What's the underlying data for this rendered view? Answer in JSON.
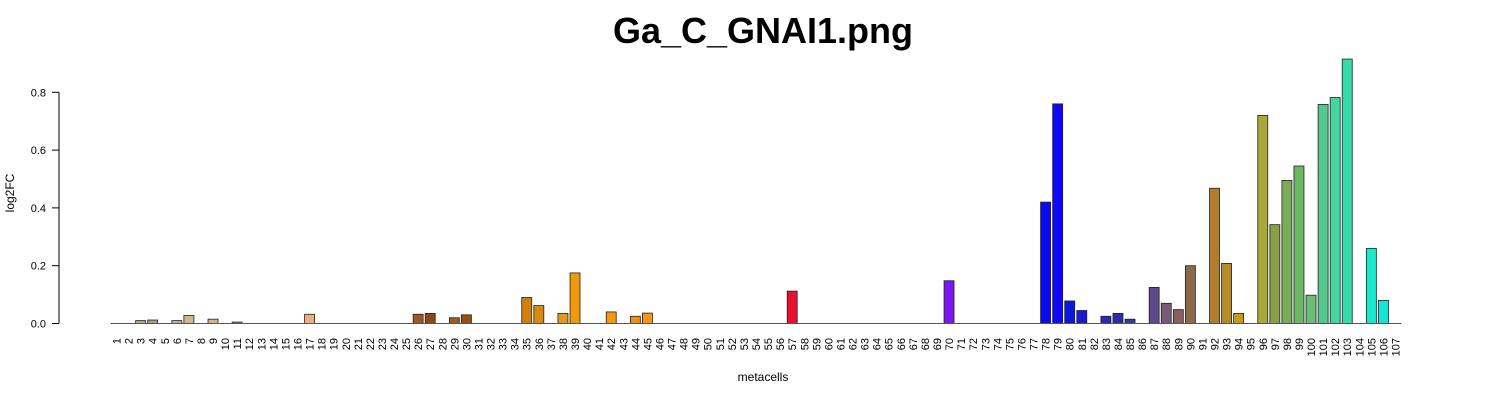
{
  "chart_data": {
    "type": "bar",
    "title": "Ga_C_GNAI1.png",
    "xlabel": "metacells",
    "ylabel": "log2FC",
    "ylim": [
      0,
      0.92
    ],
    "yticks": [
      "0.0",
      "0.2",
      "0.4",
      "0.6",
      "0.8"
    ],
    "categories": [
      "1",
      "2",
      "3",
      "4",
      "5",
      "6",
      "7",
      "8",
      "9",
      "10",
      "11",
      "12",
      "13",
      "14",
      "15",
      "16",
      "17",
      "18",
      "19",
      "20",
      "21",
      "22",
      "23",
      "24",
      "25",
      "26",
      "27",
      "28",
      "29",
      "30",
      "31",
      "32",
      "33",
      "34",
      "35",
      "36",
      "37",
      "38",
      "39",
      "40",
      "41",
      "42",
      "43",
      "44",
      "45",
      "46",
      "47",
      "48",
      "49",
      "50",
      "51",
      "52",
      "53",
      "54",
      "55",
      "56",
      "57",
      "58",
      "59",
      "60",
      "61",
      "62",
      "63",
      "64",
      "65",
      "66",
      "67",
      "68",
      "69",
      "70",
      "71",
      "72",
      "73",
      "74",
      "75",
      "76",
      "77",
      "78",
      "79",
      "80",
      "81",
      "82",
      "83",
      "84",
      "85",
      "86",
      "87",
      "88",
      "89",
      "90",
      "91",
      "92",
      "93",
      "94",
      "95",
      "96",
      "97",
      "98",
      "99",
      "100",
      "101",
      "102",
      "103",
      "104",
      "105",
      "106",
      "107"
    ],
    "values": [
      0,
      0,
      0.01,
      0.012,
      0,
      0.01,
      0.028,
      0,
      0.015,
      0,
      0.005,
      0,
      0,
      0,
      0,
      0,
      0.032,
      0,
      0,
      0,
      0,
      0,
      0,
      0,
      0,
      0.032,
      0.035,
      0,
      0.02,
      0.03,
      0,
      0,
      0,
      0,
      0.09,
      0.062,
      0,
      0.035,
      0.175,
      0,
      0,
      0.04,
      0,
      0.025,
      0.036,
      0,
      0,
      0,
      0,
      0,
      0,
      0,
      0,
      0,
      0,
      0,
      0.112,
      0,
      0,
      0,
      0,
      0,
      0,
      0,
      0,
      0,
      0,
      0,
      0,
      0.148,
      0,
      0,
      0,
      0,
      0,
      0,
      0,
      0.42,
      0.76,
      0.078,
      0.045,
      0,
      0.025,
      0.035,
      0.015,
      0,
      0.125,
      0.07,
      0.048,
      0.2,
      0,
      0.468,
      0.208,
      0.035,
      0,
      0.72,
      0.342,
      0.495,
      0.545,
      0.098,
      0.758,
      0.782,
      0.915,
      0,
      0.26,
      0.08,
      0
    ],
    "colors": [
      "#a0a0a0",
      "#a0a0a0",
      "#b4a68e",
      "#b09c7c",
      "#a0a0a0",
      "#c2ae96",
      "#d4b68c",
      "#a0a0a0",
      "#d8b28a",
      "#a0a0a0",
      "#b48e6a",
      "#a0a0a0",
      "#a0a0a0",
      "#a0a0a0",
      "#a0a0a0",
      "#a0a0a0",
      "#e8b07a",
      "#a0a0a0",
      "#a0a0a0",
      "#a0a0a0",
      "#a0a0a0",
      "#a0a0a0",
      "#a0a0a0",
      "#a0a0a0",
      "#a0a0a0",
      "#9a5a22",
      "#8c4a12",
      "#a0a0a0",
      "#a05a1c",
      "#9a4e10",
      "#a0a0a0",
      "#a0a0a0",
      "#a0a0a0",
      "#a0a0a0",
      "#d07e0c",
      "#d68a10",
      "#a0a0a0",
      "#e09a20",
      "#ee9a0a",
      "#a0a0a0",
      "#a0a0a0",
      "#f49a0c",
      "#a0a0a0",
      "#f48c10",
      "#f89218",
      "#a0a0a0",
      "#a0a0a0",
      "#a0a0a0",
      "#a0a0a0",
      "#a0a0a0",
      "#a0a0a0",
      "#a0a0a0",
      "#a0a0a0",
      "#a0a0a0",
      "#a0a0a0",
      "#a0a0a0",
      "#e8102e",
      "#a0a0a0",
      "#a0a0a0",
      "#a0a0a0",
      "#a0a0a0",
      "#a0a0a0",
      "#a0a0a0",
      "#a0a0a0",
      "#a0a0a0",
      "#a0a0a0",
      "#a0a0a0",
      "#a0a0a0",
      "#a0a0a0",
      "#7a18ee",
      "#a0a0a0",
      "#a0a0a0",
      "#a0a0a0",
      "#a0a0a0",
      "#a0a0a0",
      "#a0a0a0",
      "#a0a0a0",
      "#0a0aee",
      "#1008f4",
      "#0c18d8",
      "#1a1ad0",
      "#a0a0a0",
      "#2a2ab8",
      "#2c2ca8",
      "#3a3a9a",
      "#a0a0a0",
      "#5e4a8a",
      "#7a5a7a",
      "#8a5e5a",
      "#8a6a4a",
      "#a0a0a0",
      "#b07e2a",
      "#b48a2a",
      "#c49a1a",
      "#a0a0a0",
      "#aaa838",
      "#8aa048",
      "#7aac58",
      "#6ab864",
      "#6abe78",
      "#56c88e",
      "#48d49e",
      "#38dca8",
      "#a0a0a0",
      "#1ee8cc",
      "#18e4d2",
      "#a0a0a0"
    ]
  }
}
